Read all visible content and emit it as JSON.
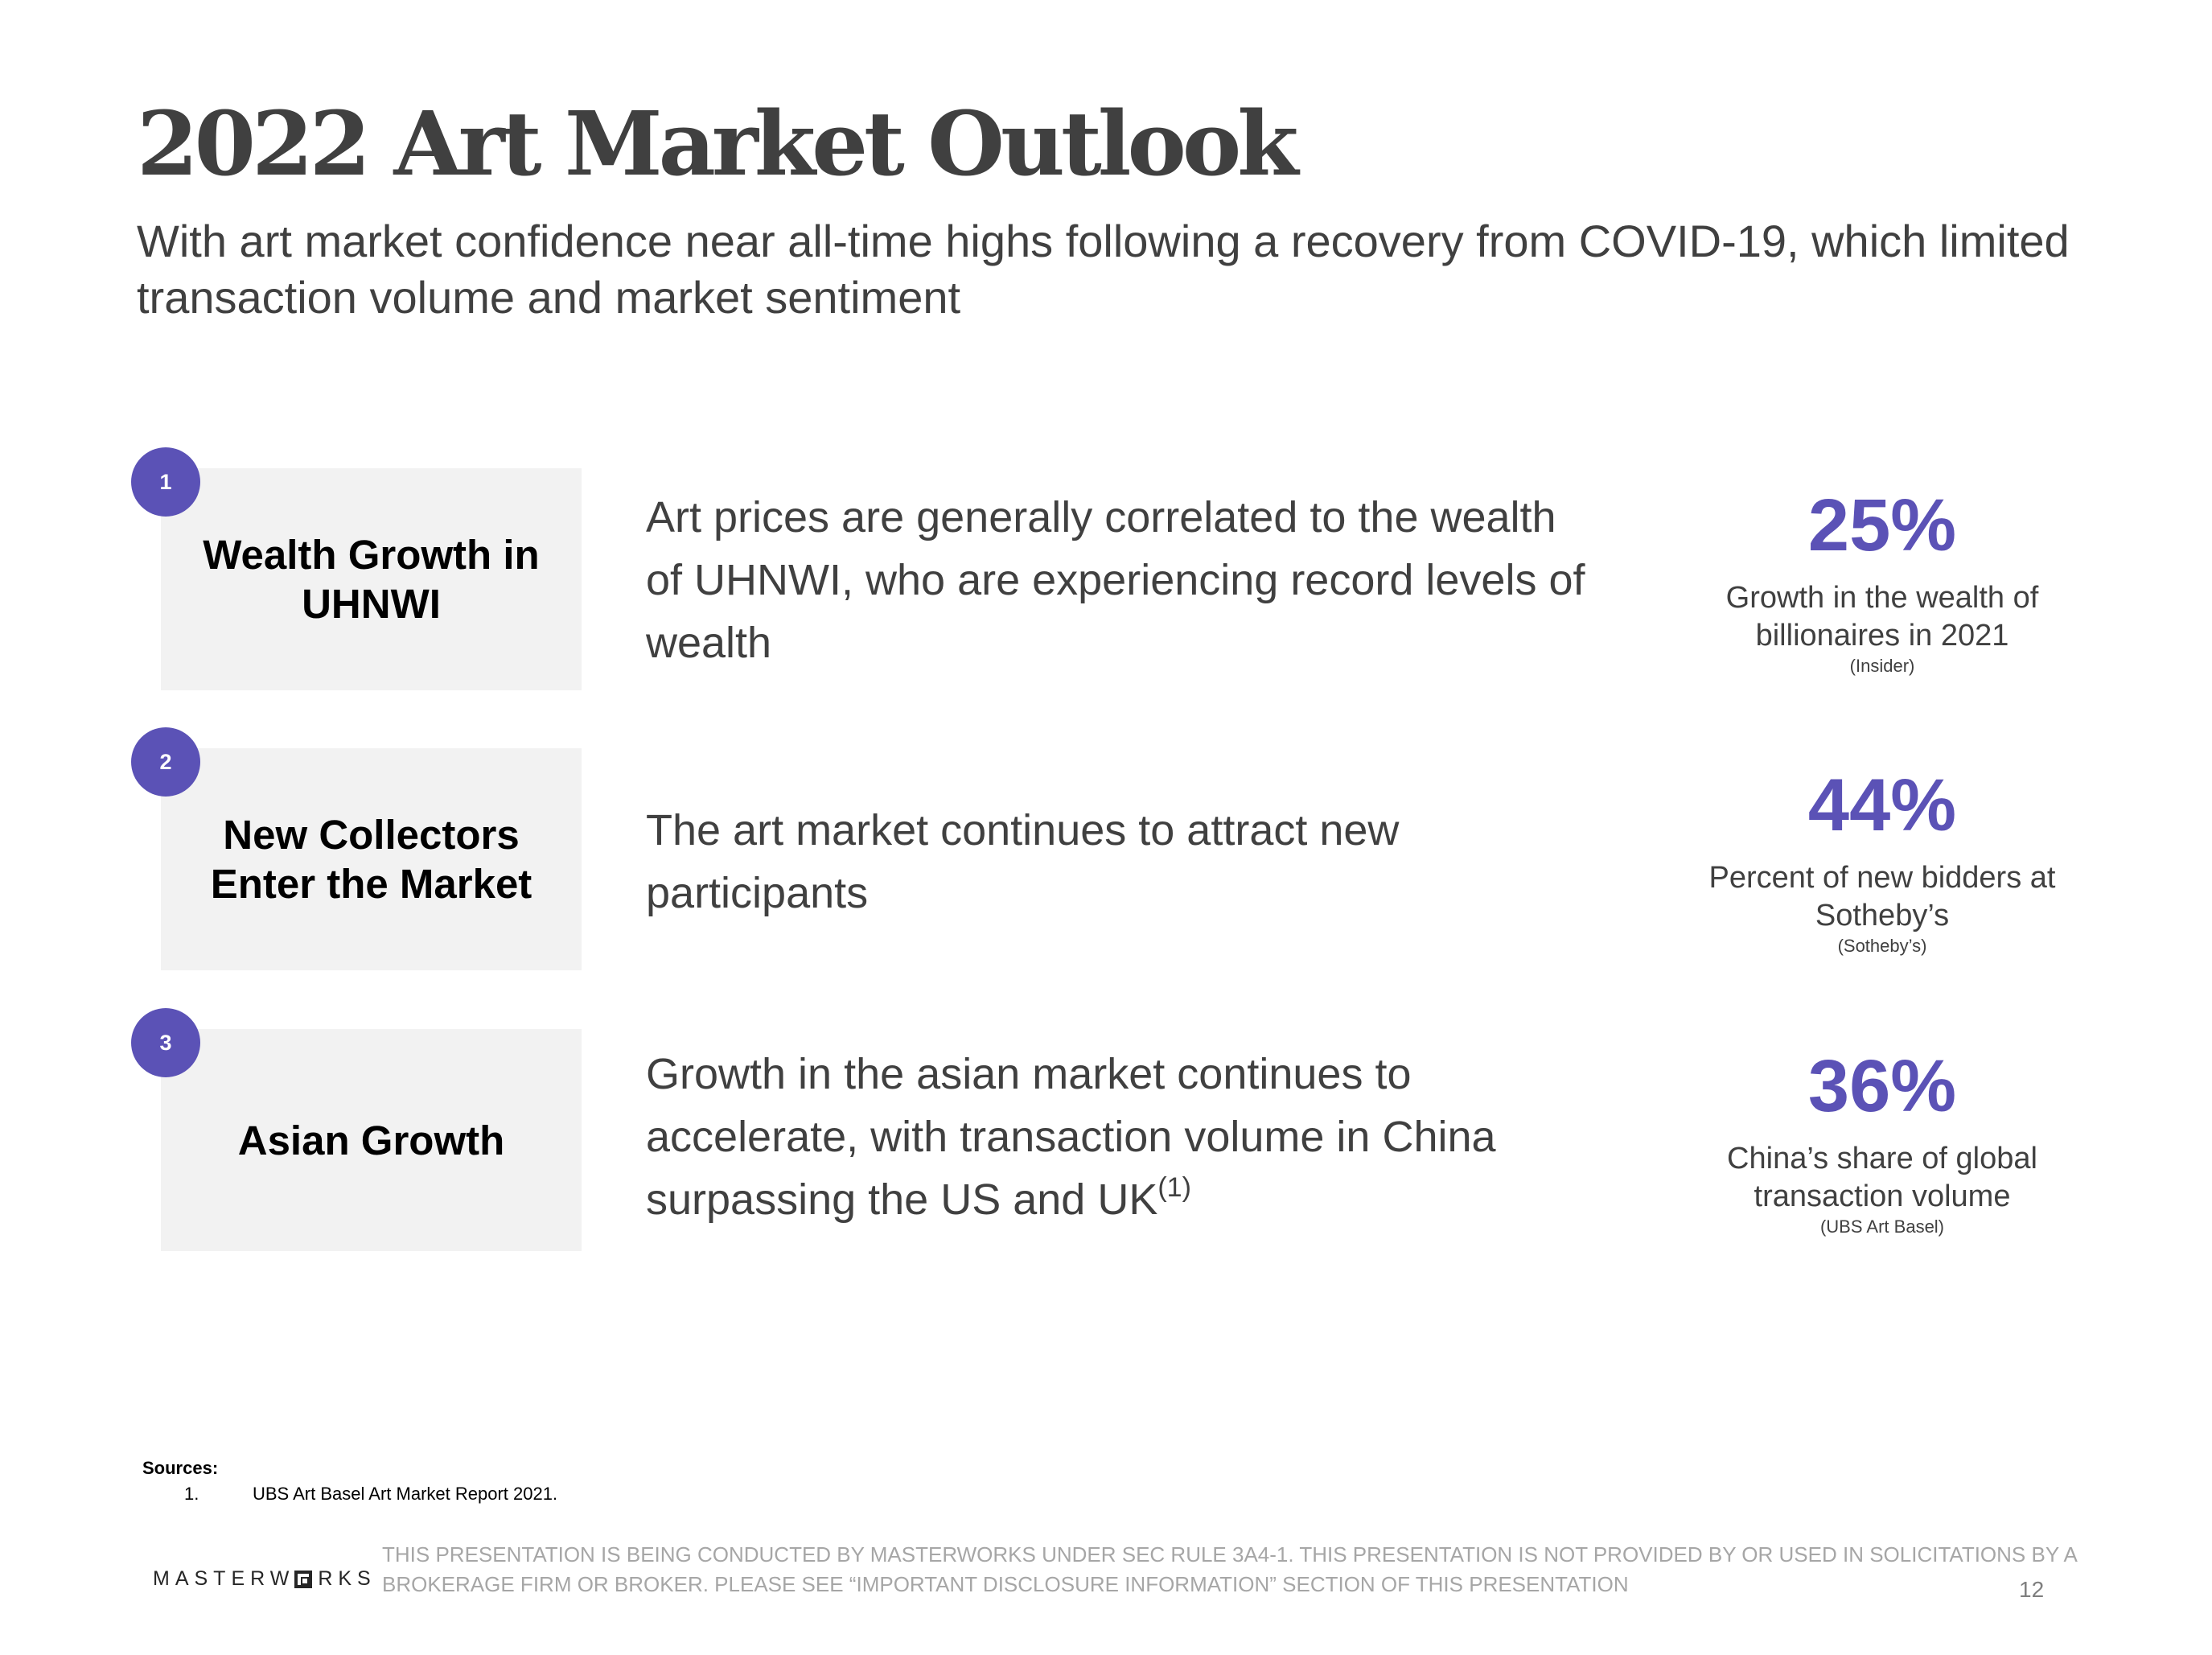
{
  "title": "2022 Art Market Outlook",
  "subtitle": "With art market confidence near all-time highs following a recovery from COVID-19, which limited transaction volume and market sentiment",
  "accent_color": "#5b52b6",
  "label_box_color": "#f2f2f2",
  "rows": [
    {
      "number": "1",
      "label": "Wealth Growth in UHNWI",
      "description": "Art prices are generally correlated to the wealth of UHNWI, who are experiencing record levels of wealth",
      "description_sup": "",
      "stat_value": "25%",
      "stat_caption": "Growth in the wealth of billionaires in 2021",
      "stat_source": "(Insider)"
    },
    {
      "number": "2",
      "label": "New Collectors Enter the Market",
      "description": "The art market continues to attract new participants",
      "description_sup": "",
      "stat_value": "44%",
      "stat_caption": "Percent of new bidders at Sotheby’s",
      "stat_source": "(Sotheby’s)"
    },
    {
      "number": "3",
      "label": "Asian Growth",
      "description": "Growth in the asian market continues to accelerate, with transaction volume in China surpassing the US and UK",
      "description_sup": "(1)",
      "stat_value": "36%",
      "stat_caption": "China’s share of global transaction volume",
      "stat_source": "(UBS Art Basel)"
    }
  ],
  "sources": {
    "heading": "Sources:",
    "items": [
      {
        "num": "1.",
        "text": "UBS Art Basel Art Market Report 2021."
      }
    ]
  },
  "footer": {
    "logo_left": "MASTERW",
    "logo_right": "RKS",
    "logo_icon": "square-o-icon",
    "disclaimer": "THIS PRESENTATION  IS BEING CONDUCTED BY MASTERWORKS UNDER SEC RULE 3A4-1. THIS PRESENTATION  IS NOT PROVIDED BY OR USED IN SOLICITATIONS BY A BROKERAGE FIRM OR BROKER. PLEASE SEE “IMPORTANT DISCLOSURE INFORMATION” SECTION OF THIS PRESENTATION",
    "page_number": "12"
  }
}
